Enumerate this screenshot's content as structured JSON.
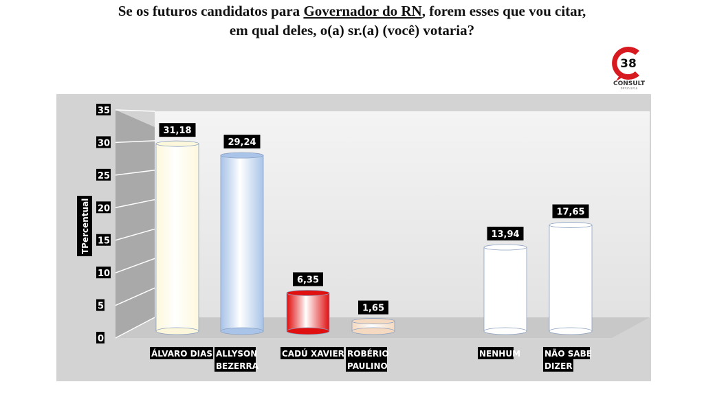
{
  "title": {
    "line1_pre": "Se os futuros candidatos para ",
    "line1_underlined": "Governador do RN",
    "line1_post": ", forem esses que vou citar,",
    "line2": "em qual deles, o(a) sr.(a) (você) votaria?"
  },
  "logo": {
    "number": "38",
    "brand": "CONSULT",
    "sub": "PESQUISA",
    "color": "#d71920"
  },
  "chart_data": {
    "type": "bar",
    "style": "3d-cylinder",
    "categories": [
      "ÁLVARO DIAS",
      "ALLYSON BEZERRA",
      "CADÚ XAVIER",
      "ROBÉRIO PAULINO",
      "NENHUM",
      "NÃO SABE DIZER"
    ],
    "category_lines": [
      [
        "ÁLVARO DIAS"
      ],
      [
        "ALLYSON",
        "BEZERRA"
      ],
      [
        "CADÚ XAVIER"
      ],
      [
        "ROBÉRIO",
        "PAULINO"
      ],
      [
        "NENHUM"
      ],
      [
        "NÃO SABE",
        "DIZER"
      ]
    ],
    "values": [
      31.18,
      29.24,
      6.35,
      1.65,
      13.94,
      17.65
    ],
    "data_labels": [
      "31,18",
      "29,24",
      "6,35",
      "1,65",
      "13,94",
      "17,65"
    ],
    "colors": [
      "#fdf8dc",
      "#a9c4e8",
      "#e01010",
      "#f5d9c0",
      "#ffffff",
      "#ffffff"
    ],
    "ylabel": "TPercentual",
    "ylim": [
      0,
      35
    ],
    "yticks": [
      "0",
      "5",
      "10",
      "15",
      "20",
      "25",
      "30",
      "35"
    ],
    "grid": true
  }
}
